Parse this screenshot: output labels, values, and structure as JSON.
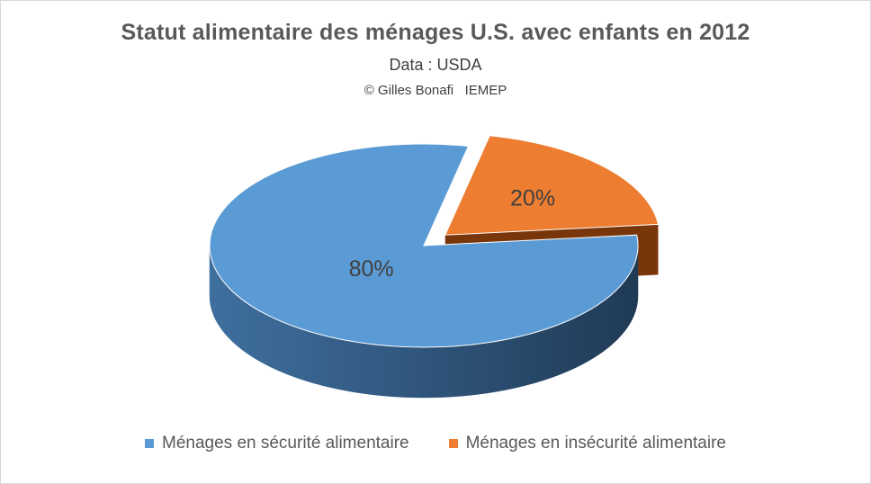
{
  "chart_data": {
    "type": "pie",
    "title": "Statut alimentaire des ménages U.S. avec enfants en 2012",
    "subtitle": "Data : USDA",
    "credit": "© Gilles Bonafi   IEMEP",
    "categories": [
      "Ménages en sécurité alimentaire",
      "Ménages en insécurité alimentaire"
    ],
    "values": [
      80,
      20
    ],
    "value_labels": [
      "80%",
      "20%"
    ],
    "exploded": [
      false,
      true
    ],
    "colors": [
      "#5b9bd5",
      "#ed7d31"
    ],
    "style": "3d-exploded",
    "legend_position": "bottom"
  }
}
